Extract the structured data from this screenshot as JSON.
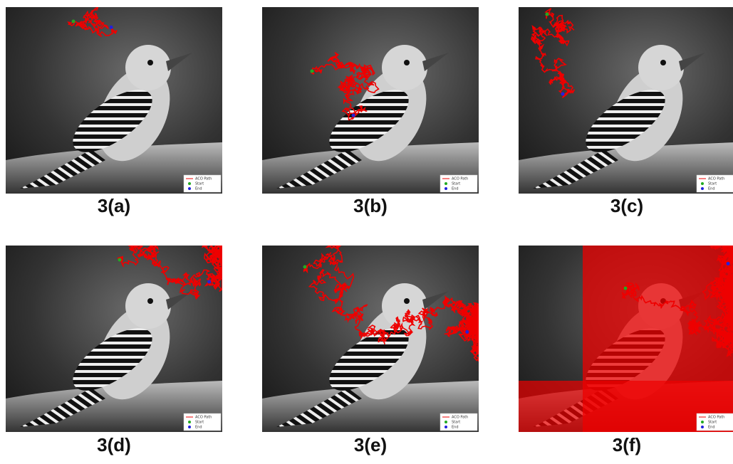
{
  "figure": {
    "panels": [
      {
        "caption": "3(a)",
        "legend": [
          "ACO Path",
          "Start",
          "End"
        ]
      },
      {
        "caption": "3(b)",
        "legend": [
          "ACO Path",
          "Start",
          "End"
        ]
      },
      {
        "caption": "3(c)",
        "legend": [
          "ACO Path",
          "Start",
          "End"
        ]
      },
      {
        "caption": "3(d)",
        "legend": [
          "ACO Path",
          "Start",
          "End"
        ]
      },
      {
        "caption": "3(e)",
        "legend": [
          "ACO Path",
          "Start",
          "End"
        ]
      },
      {
        "caption": "3(f)",
        "legend": [
          "ACO Path",
          "Start",
          "End"
        ]
      }
    ]
  }
}
